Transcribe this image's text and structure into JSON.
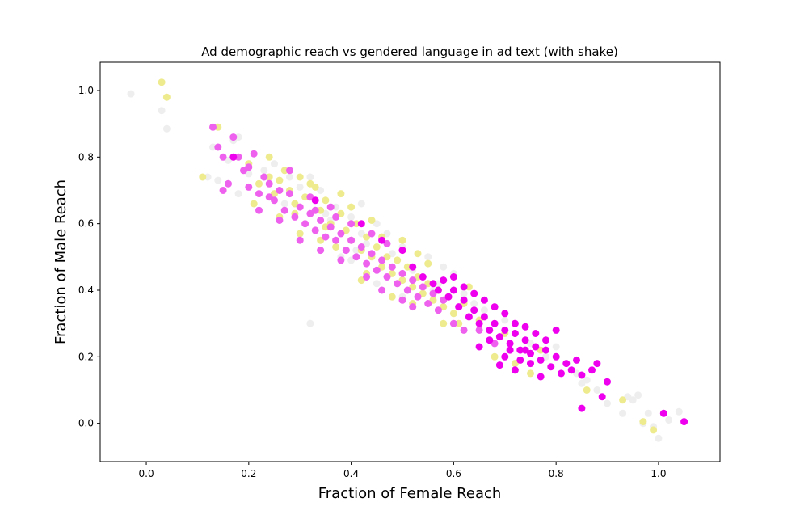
{
  "chart_data": {
    "type": "scatter",
    "title": "Ad demographic reach vs gendered language in ad text (with shake)",
    "xlabel": "Fraction of Female Reach",
    "ylabel": "Fraction of Male Reach",
    "xlim": [
      -0.09,
      1.12
    ],
    "ylim": [
      -0.115,
      1.085
    ],
    "xticks": [
      0.0,
      0.2,
      0.4,
      0.6,
      0.8,
      1.0
    ],
    "xtick_labels": [
      "0.0",
      "0.2",
      "0.4",
      "0.6",
      "0.8",
      "1.0"
    ],
    "yticks": [
      0.0,
      0.2,
      0.4,
      0.6,
      0.8,
      1.0
    ],
    "ytick_labels": [
      "0.0",
      "0.2",
      "0.4",
      "0.6",
      "0.8",
      "1.0"
    ],
    "grid": false,
    "legend": "none",
    "series": [
      {
        "color": "#eeeeee",
        "points": [
          [
            -0.03,
            0.99
          ],
          [
            0.03,
            0.94
          ],
          [
            0.04,
            0.885
          ],
          [
            0.13,
            0.83
          ],
          [
            0.17,
            0.85
          ],
          [
            0.18,
            0.86
          ],
          [
            0.16,
            0.79
          ],
          [
            0.12,
            0.74
          ],
          [
            0.14,
            0.73
          ],
          [
            0.18,
            0.69
          ],
          [
            0.2,
            0.75
          ],
          [
            0.25,
            0.78
          ],
          [
            0.28,
            0.74
          ],
          [
            0.3,
            0.71
          ],
          [
            0.32,
            0.74
          ],
          [
            0.34,
            0.7
          ],
          [
            0.37,
            0.65
          ],
          [
            0.4,
            0.62
          ],
          [
            0.42,
            0.66
          ],
          [
            0.45,
            0.6
          ],
          [
            0.47,
            0.57
          ],
          [
            0.5,
            0.53
          ],
          [
            0.55,
            0.5
          ],
          [
            0.58,
            0.47
          ],
          [
            0.6,
            0.45
          ],
          [
            0.4,
            0.49
          ],
          [
            0.45,
            0.42
          ],
          [
            0.5,
            0.38
          ],
          [
            0.38,
            0.5
          ],
          [
            0.32,
            0.3
          ],
          [
            0.36,
            0.61
          ],
          [
            0.43,
            0.54
          ],
          [
            0.52,
            0.46
          ],
          [
            0.56,
            0.4
          ],
          [
            0.62,
            0.39
          ],
          [
            0.66,
            0.34
          ],
          [
            0.7,
            0.31
          ],
          [
            0.75,
            0.24
          ],
          [
            0.8,
            0.23
          ],
          [
            0.84,
            0.15
          ],
          [
            0.86,
            0.13
          ],
          [
            0.88,
            0.1
          ],
          [
            0.9,
            0.06
          ],
          [
            0.93,
            0.03
          ],
          [
            0.94,
            0.08
          ],
          [
            0.96,
            0.085
          ],
          [
            0.97,
            0.0
          ],
          [
            0.98,
            0.03
          ],
          [
            0.99,
            -0.01
          ],
          [
            1.0,
            -0.045
          ],
          [
            1.02,
            0.01
          ],
          [
            1.04,
            0.035
          ],
          [
            0.95,
            0.07
          ],
          [
            0.85,
            0.12
          ],
          [
            0.78,
            0.2
          ],
          [
            0.72,
            0.27
          ],
          [
            0.68,
            0.3
          ],
          [
            0.64,
            0.36
          ],
          [
            0.54,
            0.44
          ],
          [
            0.48,
            0.51
          ],
          [
            0.42,
            0.57
          ],
          [
            0.35,
            0.63
          ],
          [
            0.28,
            0.69
          ],
          [
            0.23,
            0.76
          ],
          [
            0.27,
            0.66
          ],
          [
            0.33,
            0.58
          ],
          [
            0.41,
            0.52
          ],
          [
            0.46,
            0.49
          ],
          [
            0.57,
            0.42
          ],
          [
            0.61,
            0.35
          ]
        ]
      },
      {
        "color": "#eeeb8f",
        "points": [
          [
            0.03,
            1.025
          ],
          [
            0.04,
            0.98
          ],
          [
            0.14,
            0.89
          ],
          [
            0.11,
            0.74
          ],
          [
            0.2,
            0.78
          ],
          [
            0.22,
            0.72
          ],
          [
            0.24,
            0.8
          ],
          [
            0.26,
            0.73
          ],
          [
            0.25,
            0.69
          ],
          [
            0.28,
            0.7
          ],
          [
            0.29,
            0.66
          ],
          [
            0.3,
            0.74
          ],
          [
            0.31,
            0.68
          ],
          [
            0.33,
            0.71
          ],
          [
            0.34,
            0.64
          ],
          [
            0.35,
            0.67
          ],
          [
            0.36,
            0.6
          ],
          [
            0.38,
            0.63
          ],
          [
            0.39,
            0.58
          ],
          [
            0.4,
            0.55
          ],
          [
            0.41,
            0.6
          ],
          [
            0.42,
            0.52
          ],
          [
            0.43,
            0.56
          ],
          [
            0.44,
            0.5
          ],
          [
            0.45,
            0.53
          ],
          [
            0.46,
            0.47
          ],
          [
            0.47,
            0.5
          ],
          [
            0.48,
            0.45
          ],
          [
            0.49,
            0.49
          ],
          [
            0.5,
            0.43
          ],
          [
            0.51,
            0.47
          ],
          [
            0.52,
            0.41
          ],
          [
            0.53,
            0.44
          ],
          [
            0.54,
            0.39
          ],
          [
            0.55,
            0.42
          ],
          [
            0.56,
            0.37
          ],
          [
            0.57,
            0.4
          ],
          [
            0.58,
            0.35
          ],
          [
            0.59,
            0.38
          ],
          [
            0.6,
            0.33
          ],
          [
            0.62,
            0.36
          ],
          [
            0.58,
            0.3
          ],
          [
            0.65,
            0.31
          ],
          [
            0.68,
            0.2
          ],
          [
            0.72,
            0.18
          ],
          [
            0.75,
            0.15
          ],
          [
            0.86,
            0.1
          ],
          [
            0.93,
            0.07
          ],
          [
            0.97,
            0.005
          ],
          [
            0.99,
            -0.02
          ],
          [
            0.21,
            0.66
          ],
          [
            0.26,
            0.62
          ],
          [
            0.3,
            0.57
          ],
          [
            0.34,
            0.55
          ],
          [
            0.37,
            0.53
          ],
          [
            0.43,
            0.45
          ],
          [
            0.48,
            0.38
          ],
          [
            0.52,
            0.36
          ],
          [
            0.46,
            0.56
          ],
          [
            0.4,
            0.65
          ],
          [
            0.32,
            0.72
          ],
          [
            0.27,
            0.76
          ],
          [
            0.38,
            0.69
          ],
          [
            0.44,
            0.61
          ],
          [
            0.5,
            0.55
          ],
          [
            0.55,
            0.48
          ],
          [
            0.63,
            0.41
          ],
          [
            0.7,
            0.27
          ],
          [
            0.77,
            0.22
          ],
          [
            0.42,
            0.43
          ],
          [
            0.35,
            0.59
          ],
          [
            0.29,
            0.63
          ],
          [
            0.24,
            0.74
          ],
          [
            0.53,
            0.51
          ],
          [
            0.61,
            0.3
          ]
        ]
      },
      {
        "color": "#ee60ee",
        "points": [
          [
            0.13,
            0.89
          ],
          [
            0.14,
            0.83
          ],
          [
            0.15,
            0.8
          ],
          [
            0.16,
            0.72
          ],
          [
            0.15,
            0.7
          ],
          [
            0.17,
            0.86
          ],
          [
            0.18,
            0.8
          ],
          [
            0.19,
            0.76
          ],
          [
            0.2,
            0.71
          ],
          [
            0.21,
            0.81
          ],
          [
            0.22,
            0.69
          ],
          [
            0.23,
            0.74
          ],
          [
            0.24,
            0.72
          ],
          [
            0.25,
            0.67
          ],
          [
            0.26,
            0.7
          ],
          [
            0.27,
            0.64
          ],
          [
            0.28,
            0.69
          ],
          [
            0.29,
            0.62
          ],
          [
            0.3,
            0.65
          ],
          [
            0.31,
            0.6
          ],
          [
            0.32,
            0.63
          ],
          [
            0.33,
            0.58
          ],
          [
            0.34,
            0.61
          ],
          [
            0.35,
            0.56
          ],
          [
            0.36,
            0.59
          ],
          [
            0.37,
            0.55
          ],
          [
            0.38,
            0.57
          ],
          [
            0.39,
            0.52
          ],
          [
            0.4,
            0.55
          ],
          [
            0.41,
            0.5
          ],
          [
            0.42,
            0.53
          ],
          [
            0.43,
            0.48
          ],
          [
            0.44,
            0.51
          ],
          [
            0.45,
            0.46
          ],
          [
            0.46,
            0.49
          ],
          [
            0.47,
            0.44
          ],
          [
            0.48,
            0.47
          ],
          [
            0.49,
            0.42
          ],
          [
            0.5,
            0.45
          ],
          [
            0.51,
            0.4
          ],
          [
            0.52,
            0.43
          ],
          [
            0.53,
            0.38
          ],
          [
            0.54,
            0.41
          ],
          [
            0.55,
            0.36
          ],
          [
            0.56,
            0.39
          ],
          [
            0.57,
            0.34
          ],
          [
            0.58,
            0.37
          ],
          [
            0.52,
            0.35
          ],
          [
            0.6,
            0.3
          ],
          [
            0.62,
            0.28
          ],
          [
            0.28,
            0.76
          ],
          [
            0.32,
            0.68
          ],
          [
            0.36,
            0.65
          ],
          [
            0.4,
            0.6
          ],
          [
            0.44,
            0.57
          ],
          [
            0.47,
            0.54
          ],
          [
            0.26,
            0.61
          ],
          [
            0.3,
            0.55
          ],
          [
            0.34,
            0.52
          ],
          [
            0.38,
            0.49
          ],
          [
            0.43,
            0.44
          ],
          [
            0.46,
            0.4
          ],
          [
            0.5,
            0.37
          ],
          [
            0.22,
            0.64
          ],
          [
            0.2,
            0.77
          ],
          [
            0.24,
            0.68
          ],
          [
            0.65,
            0.28
          ],
          [
            0.68,
            0.24
          ],
          [
            0.33,
            0.64
          ],
          [
            0.37,
            0.62
          ]
        ]
      },
      {
        "color": "#ee00ee",
        "points": [
          [
            0.17,
            0.8
          ],
          [
            0.33,
            0.67
          ],
          [
            0.42,
            0.6
          ],
          [
            0.46,
            0.55
          ],
          [
            0.5,
            0.52
          ],
          [
            0.52,
            0.47
          ],
          [
            0.54,
            0.44
          ],
          [
            0.56,
            0.42
          ],
          [
            0.57,
            0.4
          ],
          [
            0.58,
            0.43
          ],
          [
            0.59,
            0.38
          ],
          [
            0.6,
            0.4
          ],
          [
            0.61,
            0.35
          ],
          [
            0.62,
            0.37
          ],
          [
            0.63,
            0.32
          ],
          [
            0.64,
            0.34
          ],
          [
            0.65,
            0.3
          ],
          [
            0.66,
            0.32
          ],
          [
            0.67,
            0.28
          ],
          [
            0.68,
            0.3
          ],
          [
            0.69,
            0.26
          ],
          [
            0.7,
            0.28
          ],
          [
            0.71,
            0.24
          ],
          [
            0.72,
            0.27
          ],
          [
            0.73,
            0.22
          ],
          [
            0.74,
            0.25
          ],
          [
            0.75,
            0.21
          ],
          [
            0.76,
            0.23
          ],
          [
            0.77,
            0.19
          ],
          [
            0.78,
            0.22
          ],
          [
            0.79,
            0.17
          ],
          [
            0.8,
            0.2
          ],
          [
            0.81,
            0.15
          ],
          [
            0.82,
            0.18
          ],
          [
            0.83,
            0.16
          ],
          [
            0.84,
            0.19
          ],
          [
            0.85,
            0.145
          ],
          [
            0.87,
            0.16
          ],
          [
            0.88,
            0.18
          ],
          [
            0.89,
            0.08
          ],
          [
            0.9,
            0.125
          ],
          [
            0.85,
            0.045
          ],
          [
            1.01,
            0.03
          ],
          [
            1.05,
            0.005
          ],
          [
            0.74,
            0.29
          ],
          [
            0.72,
            0.3
          ],
          [
            0.7,
            0.33
          ],
          [
            0.68,
            0.35
          ],
          [
            0.66,
            0.37
          ],
          [
            0.64,
            0.39
          ],
          [
            0.62,
            0.41
          ],
          [
            0.6,
            0.44
          ],
          [
            0.7,
            0.2
          ],
          [
            0.72,
            0.16
          ],
          [
            0.69,
            0.175
          ],
          [
            0.75,
            0.18
          ],
          [
            0.77,
            0.14
          ],
          [
            0.73,
            0.19
          ],
          [
            0.71,
            0.22
          ],
          [
            0.76,
            0.27
          ],
          [
            0.78,
            0.25
          ],
          [
            0.8,
            0.28
          ],
          [
            0.67,
            0.25
          ],
          [
            0.65,
            0.23
          ],
          [
            0.74,
            0.22
          ]
        ]
      }
    ]
  }
}
